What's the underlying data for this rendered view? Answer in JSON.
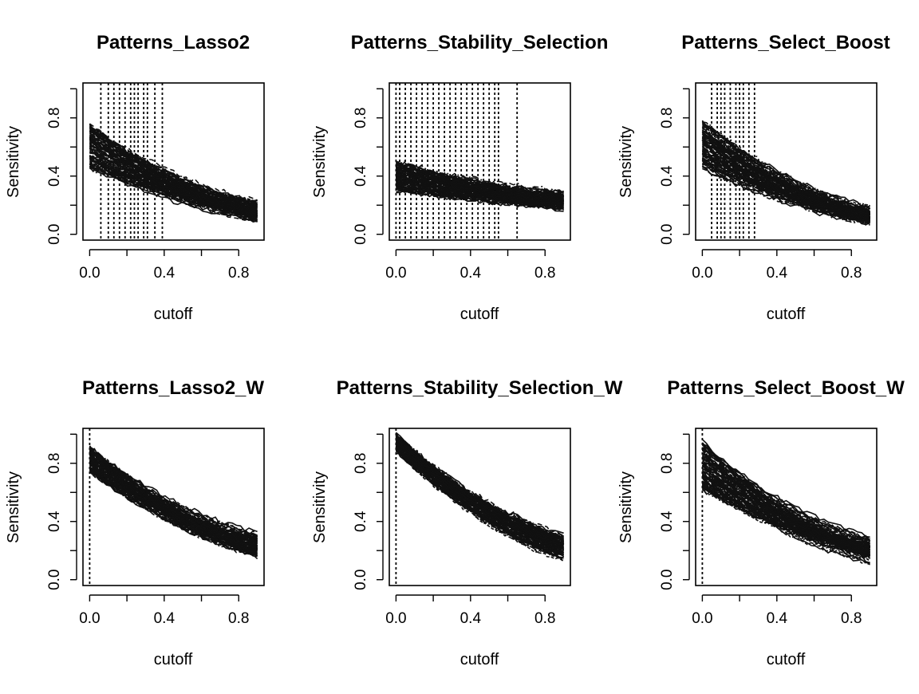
{
  "chart_data": [
    {
      "type": "line",
      "title": "Patterns_Lasso2",
      "xlabel": "cutoff",
      "ylabel": "Sensitivity",
      "xlim": [
        0.0,
        0.9
      ],
      "ylim": [
        0.0,
        1.0
      ],
      "x_ticks": [
        "0.0",
        "0.4",
        "0.8"
      ],
      "y_ticks": [
        "0.0",
        "0.4",
        "0.8"
      ],
      "grid": false,
      "series_count": 100,
      "series_start_range": [
        0.45,
        0.76
      ],
      "series_end_range": [
        0.08,
        0.24
      ],
      "vertical_cutoff_lines": [
        0.06,
        0.1,
        0.13,
        0.16,
        0.19,
        0.22,
        0.24,
        0.26,
        0.29,
        0.31,
        0.35,
        0.39
      ]
    },
    {
      "type": "line",
      "title": "Patterns_Stability_Selection",
      "xlabel": "cutoff",
      "ylabel": "Sensitivity",
      "xlim": [
        0.0,
        0.9
      ],
      "ylim": [
        0.0,
        1.0
      ],
      "x_ticks": [
        "0.0",
        "0.4",
        "0.8"
      ],
      "y_ticks": [
        "0.0",
        "0.4",
        "0.8"
      ],
      "grid": false,
      "series_count": 100,
      "series_start_range": [
        0.3,
        0.5
      ],
      "series_end_range": [
        0.15,
        0.3
      ],
      "vertical_cutoff_lines": [
        0.0,
        0.02,
        0.05,
        0.08,
        0.11,
        0.14,
        0.17,
        0.2,
        0.23,
        0.26,
        0.29,
        0.32,
        0.35,
        0.38,
        0.41,
        0.44,
        0.47,
        0.5,
        0.53,
        0.55,
        0.65
      ]
    },
    {
      "type": "line",
      "title": "Patterns_Select_Boost",
      "xlabel": "cutoff",
      "ylabel": "Sensitivity",
      "xlim": [
        0.0,
        0.9
      ],
      "ylim": [
        0.0,
        1.0
      ],
      "x_ticks": [
        "0.0",
        "0.4",
        "0.8"
      ],
      "y_ticks": [
        "0.0",
        "0.4",
        "0.8"
      ],
      "grid": false,
      "series_count": 100,
      "series_start_range": [
        0.45,
        0.78
      ],
      "series_end_range": [
        0.05,
        0.2
      ],
      "vertical_cutoff_lines": [
        0.05,
        0.08,
        0.1,
        0.12,
        0.15,
        0.18,
        0.2,
        0.22,
        0.25,
        0.28
      ]
    },
    {
      "type": "line",
      "title": "Patterns_Lasso2_W",
      "xlabel": "cutoff",
      "ylabel": "Sensitivity",
      "xlim": [
        0.0,
        0.9
      ],
      "ylim": [
        0.0,
        1.0
      ],
      "x_ticks": [
        "0.0",
        "0.4",
        "0.8"
      ],
      "y_ticks": [
        "0.0",
        "0.4",
        "0.8"
      ],
      "grid": false,
      "series_count": 100,
      "series_start_range": [
        0.74,
        0.92
      ],
      "series_end_range": [
        0.15,
        0.33
      ],
      "vertical_cutoff_lines": [
        0.0
      ]
    },
    {
      "type": "line",
      "title": "Patterns_Stability_Selection_W",
      "xlabel": "cutoff",
      "ylabel": "Sensitivity",
      "xlim": [
        0.0,
        0.9
      ],
      "ylim": [
        0.0,
        1.0
      ],
      "x_ticks": [
        "0.0",
        "0.4",
        "0.8"
      ],
      "y_ticks": [
        "0.0",
        "0.4",
        "0.8"
      ],
      "grid": false,
      "series_count": 100,
      "series_start_range": [
        0.88,
        1.0
      ],
      "series_end_range": [
        0.12,
        0.32
      ],
      "vertical_cutoff_lines": [
        0.0
      ]
    },
    {
      "type": "line",
      "title": "Patterns_Select_Boost_W",
      "xlabel": "cutoff",
      "ylabel": "Sensitivity",
      "xlim": [
        0.0,
        0.9
      ],
      "ylim": [
        0.0,
        1.0
      ],
      "x_ticks": [
        "0.0",
        "0.4",
        "0.8"
      ],
      "y_ticks": [
        "0.0",
        "0.4",
        "0.8"
      ],
      "grid": false,
      "series_count": 100,
      "series_start_range": [
        0.62,
        0.95
      ],
      "series_end_range": [
        0.1,
        0.3
      ],
      "vertical_cutoff_lines": [
        0.0
      ]
    }
  ],
  "colors": {
    "foreground": "#000000",
    "background": "#ffffff"
  }
}
